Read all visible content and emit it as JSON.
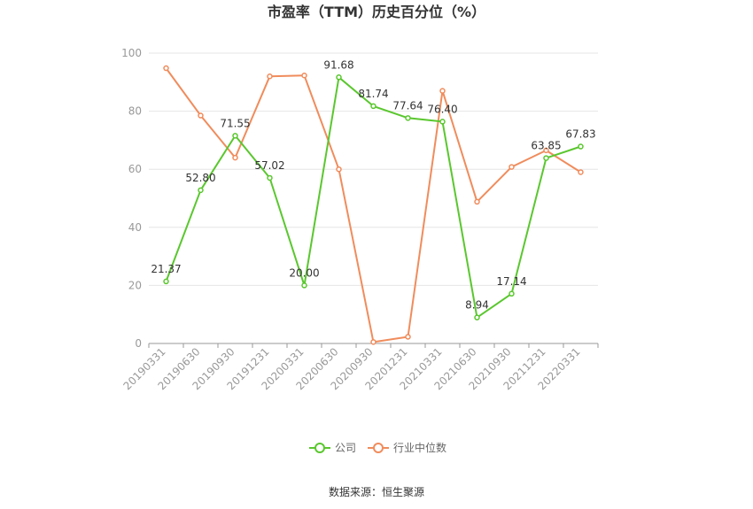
{
  "chart_data": {
    "type": "line",
    "title": "市盈率（TTM）历史百分位（%）",
    "xlabel": "",
    "ylabel": "",
    "ylim": [
      0,
      100
    ],
    "yticks": [
      0,
      20,
      40,
      60,
      80,
      100
    ],
    "categories": [
      "20190331",
      "20190630",
      "20190930",
      "20191231",
      "20200331",
      "20200630",
      "20200930",
      "20201231",
      "20210331",
      "20210630",
      "20210930",
      "20211231",
      "20220331"
    ],
    "grid": true,
    "legend_position": "bottom",
    "series": [
      {
        "name": "公司",
        "color": "#5ac72e",
        "values": [
          21.37,
          52.8,
          71.55,
          57.02,
          20.0,
          91.68,
          81.74,
          77.64,
          76.4,
          8.94,
          17.14,
          63.85,
          67.83
        ],
        "labels": [
          "21.37",
          "52.80",
          "71.55",
          "57.02",
          "20.00",
          "91.68",
          "81.74",
          "77.64",
          "76.40",
          "8.94",
          "17.14",
          "63.85",
          "67.83"
        ]
      },
      {
        "name": "行业中位数",
        "color": "#f08c5c",
        "values": [
          94.8,
          78.5,
          64.0,
          92.0,
          92.3,
          60.0,
          0.5,
          2.3,
          87.0,
          48.8,
          60.8,
          66.5,
          59.0
        ]
      }
    ],
    "source": "数据来源：恒生聚源"
  }
}
